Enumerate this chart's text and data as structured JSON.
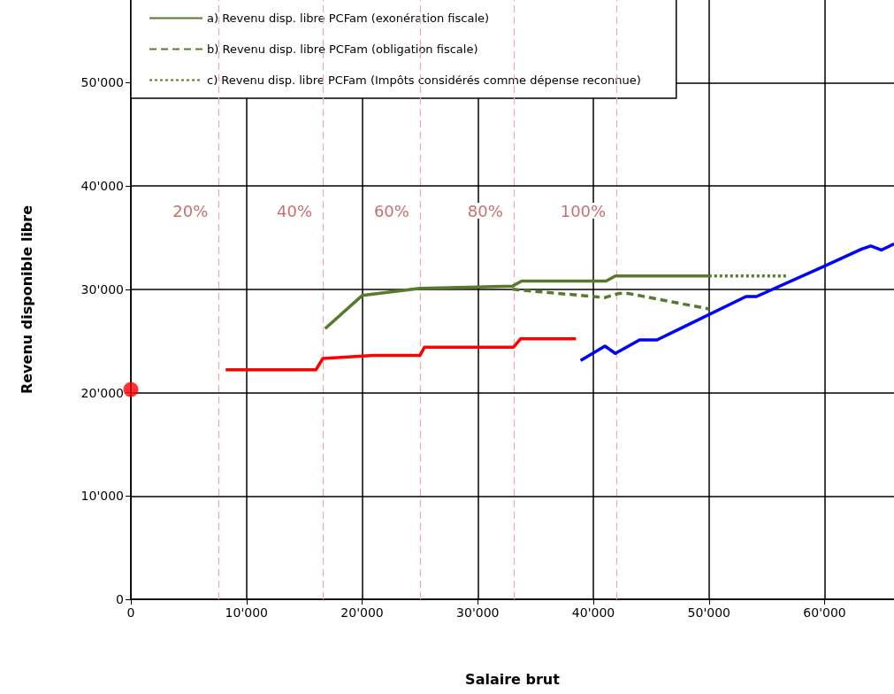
{
  "chart_data": {
    "type": "line",
    "xlabel": "Salaire brut",
    "ylabel": "Revenu disponible libre",
    "xlim": [
      0,
      66000
    ],
    "ylim": [
      0,
      58000
    ],
    "xticks": [
      0,
      {
        "value": 10000,
        "label": "10'000"
      },
      {
        "value": 20000,
        "label": "20'000"
      },
      {
        "value": 30000,
        "label": "30'000"
      },
      {
        "value": 40000,
        "label": "40'000"
      },
      {
        "value": 50000,
        "label": "50'000"
      },
      {
        "value": 60000,
        "label": "60'000"
      }
    ],
    "yticks": [
      0,
      {
        "value": 10000,
        "label": "10'000"
      },
      {
        "value": 20000,
        "label": "20'000"
      },
      {
        "value": 30000,
        "label": "30'000"
      },
      {
        "value": 40000,
        "label": "40'000"
      },
      {
        "value": 50000,
        "label": "50'000"
      }
    ],
    "grid": true,
    "legend": "top left",
    "marker": "none",
    "series": [
      {
        "name": "a) Revenu disp. libre PCFam (exonération fiscale)",
        "color": "#587a2c",
        "line_style": "solid",
        "x": [
          16800,
          20000,
          25000,
          33000,
          33800,
          41100,
          41900,
          50000
        ],
        "values": [
          26200,
          29400,
          30100,
          30300,
          30800,
          30800,
          31300,
          31300
        ]
      },
      {
        "name": "b) Revenu disp. libre PCFam (obligation fiscale)",
        "color": "#587a2c",
        "line_style": "dashed",
        "x": [
          33000,
          40000,
          41000,
          42200,
          43000,
          50000
        ],
        "values": [
          30000,
          29300,
          29200,
          29600,
          29600,
          28100
        ]
      },
      {
        "name": "c) Revenu disp. libre PCFam (Impôts considérés comme dépense reconnue)",
        "color": "#587a2c",
        "line_style": "dotted",
        "x": [
          50000,
          56700
        ],
        "values": [
          31300,
          31300
        ]
      },
      {
        "color": "#ff0000",
        "line_style": "solid",
        "x": [
          8200,
          16000,
          16600,
          21000,
          25000,
          25400,
          33100,
          33700,
          38500
        ],
        "values": [
          22200,
          22200,
          23300,
          23600,
          23600,
          24400,
          24400,
          25200,
          25200
        ]
      },
      {
        "color": "#0000ff",
        "line_style": "solid",
        "x": [
          38900,
          41000,
          41900,
          44000,
          45500,
          53200,
          54100,
          59900,
          63200,
          64000,
          64900,
          66000
        ],
        "values": [
          23100,
          24500,
          23800,
          25100,
          25100,
          29300,
          29300,
          32200,
          33900,
          34200,
          33800,
          34400
        ]
      },
      {
        "type": "scatter",
        "marker": "circle",
        "color": "#ff0000",
        "x": [
          0
        ],
        "values": [
          20300
        ]
      }
    ],
    "ref_lines": [
      {
        "axis": "x",
        "value": 7600,
        "color": "#f0a8a8",
        "line_style": "dashed"
      },
      {
        "axis": "x",
        "value": 16600,
        "color": "#f0a8a8",
        "line_style": "dashed"
      },
      {
        "axis": "x",
        "value": 25000,
        "color": "#f0a8a8",
        "line_style": "dashed"
      },
      {
        "axis": "x",
        "value": 33100,
        "color": "#f0a8a8",
        "line_style": "dashed"
      },
      {
        "axis": "x",
        "value": 42000,
        "color": "#f0a8a8",
        "line_style": "dashed"
      }
    ],
    "annotations": [
      "20%",
      "40%",
      "60%",
      "80%",
      "100%"
    ]
  }
}
